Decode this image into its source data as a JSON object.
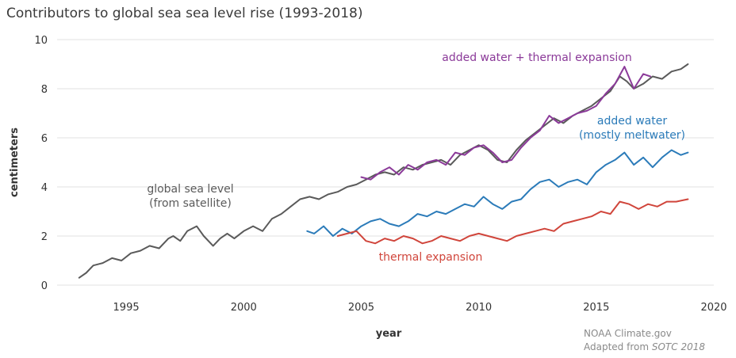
{
  "chart_data": {
    "type": "line",
    "title": "Contributors to global sea sea level rise (1993-2018)",
    "xlabel": "year",
    "ylabel": "centimeters",
    "xlim": [
      1992.5,
      2020
    ],
    "ylim": [
      0,
      10
    ],
    "x_ticks": [
      1995,
      2000,
      2005,
      2010,
      2015,
      2020
    ],
    "y_ticks": [
      0,
      2,
      4,
      6,
      8,
      10
    ],
    "grid": "horizontal",
    "series": [
      {
        "name": "global sea level",
        "label_lines": [
          "global sea level",
          "(from satellite)"
        ],
        "color": "#5a5a5a",
        "x": [
          1993.0,
          1993.3,
          1993.6,
          1994.0,
          1994.4,
          1994.8,
          1995.2,
          1995.6,
          1996.0,
          1996.4,
          1996.8,
          1997.0,
          1997.3,
          1997.6,
          1998.0,
          1998.3,
          1998.7,
          1999.0,
          1999.3,
          1999.6,
          2000.0,
          2000.4,
          2000.8,
          2001.2,
          2001.6,
          2002.0,
          2002.4,
          2002.8,
          2003.2,
          2003.6,
          2004.0,
          2004.4,
          2004.8,
          2005.2,
          2005.6,
          2006.0,
          2006.4,
          2006.8,
          2007.2,
          2007.6,
          2008.0,
          2008.4,
          2008.8,
          2009.2,
          2009.6,
          2010.0,
          2010.4,
          2010.8,
          2011.2,
          2011.6,
          2012.0,
          2012.4,
          2012.8,
          2013.2,
          2013.6,
          2014.0,
          2014.4,
          2014.8,
          2015.2,
          2015.6,
          2016.0,
          2016.3,
          2016.6,
          2017.0,
          2017.4,
          2017.8,
          2018.2,
          2018.6,
          2018.9
        ],
        "values": [
          0.3,
          0.5,
          0.8,
          0.9,
          1.1,
          1.0,
          1.3,
          1.4,
          1.6,
          1.5,
          1.9,
          2.0,
          1.8,
          2.2,
          2.4,
          2.0,
          1.6,
          1.9,
          2.1,
          1.9,
          2.2,
          2.4,
          2.2,
          2.7,
          2.9,
          3.2,
          3.5,
          3.6,
          3.5,
          3.7,
          3.8,
          4.0,
          4.1,
          4.3,
          4.5,
          4.6,
          4.5,
          4.8,
          4.7,
          4.9,
          5.0,
          5.1,
          4.9,
          5.3,
          5.5,
          5.7,
          5.5,
          5.1,
          5.0,
          5.5,
          5.9,
          6.2,
          6.5,
          6.8,
          6.6,
          6.9,
          7.1,
          7.3,
          7.6,
          7.9,
          8.5,
          8.3,
          8.0,
          8.2,
          8.5,
          8.4,
          8.7,
          8.8,
          9.0
        ]
      },
      {
        "name": "added water + thermal expansion",
        "label_lines": [
          "added water + thermal expansion"
        ],
        "color": "#8b3a99",
        "x": [
          2005.0,
          2005.4,
          2005.8,
          2006.2,
          2006.6,
          2007.0,
          2007.4,
          2007.8,
          2008.2,
          2008.6,
          2009.0,
          2009.4,
          2009.8,
          2010.2,
          2010.6,
          2011.0,
          2011.4,
          2011.8,
          2012.2,
          2012.6,
          2013.0,
          2013.4,
          2013.8,
          2014.2,
          2014.6,
          2015.0,
          2015.4,
          2015.8,
          2016.2,
          2016.6,
          2017.0,
          2017.3
        ],
        "values": [
          4.4,
          4.3,
          4.6,
          4.8,
          4.5,
          4.9,
          4.7,
          5.0,
          5.1,
          4.9,
          5.4,
          5.3,
          5.6,
          5.7,
          5.4,
          5.0,
          5.1,
          5.6,
          6.0,
          6.3,
          6.9,
          6.6,
          6.8,
          7.0,
          7.1,
          7.3,
          7.8,
          8.2,
          8.9,
          8.0,
          8.6,
          8.5
        ]
      },
      {
        "name": "added water (mostly meltwater)",
        "label_lines": [
          "added water",
          "(mostly meltwater)"
        ],
        "color": "#2b7bb9",
        "x": [
          2002.7,
          2003.0,
          2003.4,
          2003.8,
          2004.2,
          2004.6,
          2005.0,
          2005.4,
          2005.8,
          2006.2,
          2006.6,
          2007.0,
          2007.4,
          2007.8,
          2008.2,
          2008.6,
          2009.0,
          2009.4,
          2009.8,
          2010.2,
          2010.6,
          2011.0,
          2011.4,
          2011.8,
          2012.2,
          2012.6,
          2013.0,
          2013.4,
          2013.8,
          2014.2,
          2014.6,
          2015.0,
          2015.4,
          2015.8,
          2016.2,
          2016.6,
          2017.0,
          2017.4,
          2017.8,
          2018.2,
          2018.6,
          2018.9
        ],
        "values": [
          2.2,
          2.1,
          2.4,
          2.0,
          2.3,
          2.1,
          2.4,
          2.6,
          2.7,
          2.5,
          2.4,
          2.6,
          2.9,
          2.8,
          3.0,
          2.9,
          3.1,
          3.3,
          3.2,
          3.6,
          3.3,
          3.1,
          3.4,
          3.5,
          3.9,
          4.2,
          4.3,
          4.0,
          4.2,
          4.3,
          4.1,
          4.6,
          4.9,
          5.1,
          5.4,
          4.9,
          5.2,
          4.8,
          5.2,
          5.5,
          5.3,
          5.4
        ]
      },
      {
        "name": "thermal expansion",
        "label_lines": [
          "thermal expansion"
        ],
        "color": "#d0453b",
        "x": [
          2004.0,
          2004.4,
          2004.8,
          2005.2,
          2005.6,
          2006.0,
          2006.4,
          2006.8,
          2007.2,
          2007.6,
          2008.0,
          2008.4,
          2008.8,
          2009.2,
          2009.6,
          2010.0,
          2010.4,
          2010.8,
          2011.2,
          2011.6,
          2012.0,
          2012.4,
          2012.8,
          2013.2,
          2013.6,
          2014.0,
          2014.4,
          2014.8,
          2015.2,
          2015.6,
          2016.0,
          2016.4,
          2016.8,
          2017.2,
          2017.6,
          2018.0,
          2018.4,
          2018.9
        ],
        "values": [
          2.0,
          2.1,
          2.2,
          1.8,
          1.7,
          1.9,
          1.8,
          2.0,
          1.9,
          1.7,
          1.8,
          2.0,
          1.9,
          1.8,
          2.0,
          2.1,
          2.0,
          1.9,
          1.8,
          2.0,
          2.1,
          2.2,
          2.3,
          2.2,
          2.5,
          2.6,
          2.7,
          2.8,
          3.0,
          2.9,
          3.4,
          3.3,
          3.1,
          3.3,
          3.2,
          3.4,
          3.4,
          3.5
        ]
      }
    ]
  },
  "credit": {
    "line1": "NOAA Climate.gov",
    "line2_prefix": "Adapted from ",
    "line2_italic": "SOTC 2018"
  }
}
